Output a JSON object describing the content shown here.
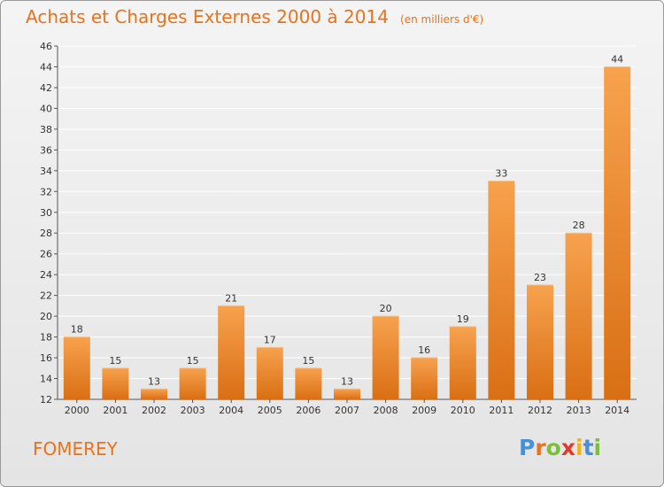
{
  "chart_data": {
    "type": "bar",
    "title": "Achats et Charges Externes 2000 à 2014",
    "subtitle": "(en milliers d'€)",
    "categories": [
      "2000",
      "2001",
      "2002",
      "2003",
      "2004",
      "2005",
      "2006",
      "2007",
      "2008",
      "2009",
      "2010",
      "2011",
      "2012",
      "2013",
      "2014"
    ],
    "values": [
      18,
      15,
      13,
      15,
      21,
      17,
      15,
      13,
      20,
      16,
      19,
      33,
      23,
      28,
      44
    ],
    "ylim": [
      12,
      46
    ],
    "yticks": [
      12,
      14,
      16,
      18,
      20,
      22,
      24,
      26,
      28,
      30,
      32,
      34,
      36,
      38,
      40,
      42,
      44,
      46
    ],
    "grid": true,
    "bar_color": "#f08c2c"
  },
  "footer": {
    "place": "FOMEREY",
    "logo_letters": [
      "P",
      "r",
      "o",
      "x",
      "i",
      "t",
      "i"
    ],
    "logo_colors": [
      "#4a90d6",
      "#e8731c",
      "#7bbf3c",
      "#e23a2a",
      "#f2b31c",
      "#4a90d6",
      "#7bbf3c"
    ]
  }
}
